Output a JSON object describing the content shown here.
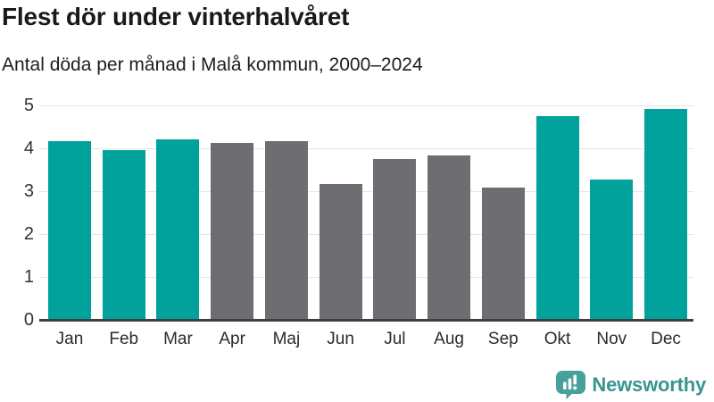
{
  "header": {
    "title": "Flest dör under vinterhalvåret",
    "subtitle": "Antal döda per månad i Malå kommun, 2000–2024"
  },
  "chart_data": {
    "type": "bar",
    "title": "Flest dör under vinterhalvåret",
    "subtitle": "Antal döda per månad i Malå kommun, 2000–2024",
    "categories": [
      "Jan",
      "Feb",
      "Mar",
      "Apr",
      "Maj",
      "Jun",
      "Jul",
      "Aug",
      "Sep",
      "Okt",
      "Nov",
      "Dec"
    ],
    "values": [
      4.16,
      3.96,
      4.2,
      4.12,
      4.16,
      3.16,
      3.76,
      3.84,
      3.08,
      4.76,
      3.28,
      4.92
    ],
    "highlighted": [
      true,
      true,
      true,
      false,
      false,
      false,
      false,
      false,
      false,
      true,
      true,
      true
    ],
    "highlight_color": "#00a29b",
    "default_color": "#6d6d72",
    "xlabel": "",
    "ylabel": "",
    "ylim": [
      0,
      5
    ],
    "yticks": [
      0,
      1,
      2,
      3,
      4,
      5
    ],
    "grid": "horizontal-only",
    "legend": "none"
  },
  "footer": {
    "brand": "Newsworthy",
    "brand_color": "#3a948f",
    "logo_color": "#47a19b"
  }
}
